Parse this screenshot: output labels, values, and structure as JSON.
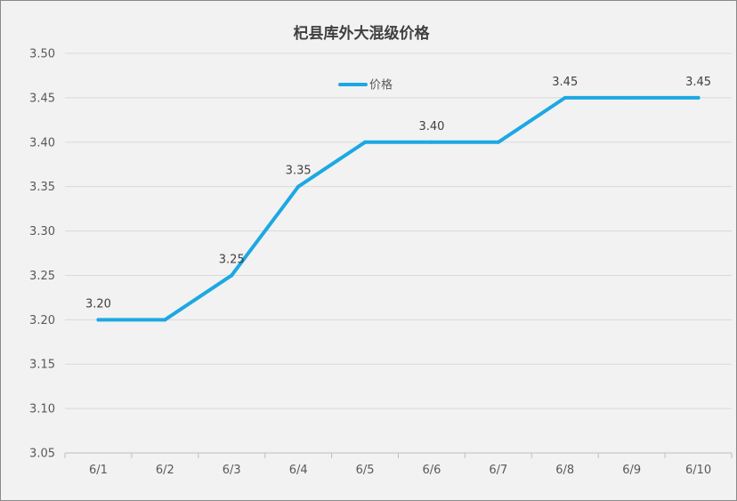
{
  "chart_data": {
    "type": "line",
    "title": "杞县库外大混级价格",
    "xlabel": "",
    "ylabel": "",
    "categories": [
      "6/1",
      "6/2",
      "6/3",
      "6/4",
      "6/5",
      "6/6",
      "6/7",
      "6/8",
      "6/9",
      "6/10"
    ],
    "series": [
      {
        "name": "价格",
        "color": "#1ca8e3",
        "values": [
          3.2,
          3.2,
          3.25,
          3.35,
          3.4,
          3.4,
          3.4,
          3.45,
          3.45,
          3.45
        ]
      }
    ],
    "data_labels": [
      {
        "index": 0,
        "text": "3.20"
      },
      {
        "index": 2,
        "text": "3.25"
      },
      {
        "index": 3,
        "text": "3.35"
      },
      {
        "index": 5,
        "text": "3.40"
      },
      {
        "index": 7,
        "text": "3.45"
      },
      {
        "index": 9,
        "text": "3.45"
      }
    ],
    "ylim": [
      3.05,
      3.5
    ],
    "yticks": [
      "3.05",
      "3.10",
      "3.15",
      "3.20",
      "3.25",
      "3.30",
      "3.35",
      "3.40",
      "3.45",
      "3.50"
    ],
    "grid": true,
    "legend_position": "top-center"
  }
}
